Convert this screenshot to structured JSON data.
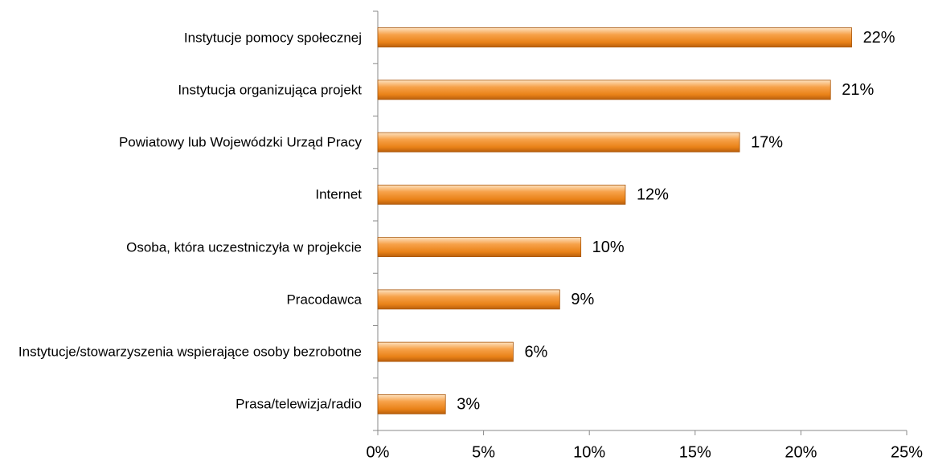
{
  "chart_data": {
    "type": "bar",
    "orientation": "horizontal",
    "categories": [
      "Instytucje pomocy społecznej",
      "Instytucja organizująca projekt",
      "Powiatowy lub Wojewódzki Urząd Pracy",
      "Internet",
      "Osoba, która uczestniczyła w projekcie",
      "Pracodawca",
      "Instytucje/stowarzyszenia wspierające osoby bezrobotne",
      "Prasa/telewizja/radio"
    ],
    "values": [
      22.4,
      21.4,
      17.1,
      11.7,
      9.6,
      8.6,
      6.4,
      3.2
    ],
    "value_labels": [
      "22%",
      "21%",
      "17%",
      "12%",
      "10%",
      "9%",
      "6%",
      "3%"
    ],
    "color": "#f0902a",
    "xlim": [
      0,
      25
    ],
    "xticks": [
      {
        "value": 0,
        "label": "0%"
      },
      {
        "value": 5,
        "label": "5%"
      },
      {
        "value": 10,
        "label": "10%"
      },
      {
        "value": 15,
        "label": "15%"
      },
      {
        "value": 20,
        "label": "20%"
      },
      {
        "value": 25,
        "label": "25%"
      }
    ],
    "grid": false
  }
}
